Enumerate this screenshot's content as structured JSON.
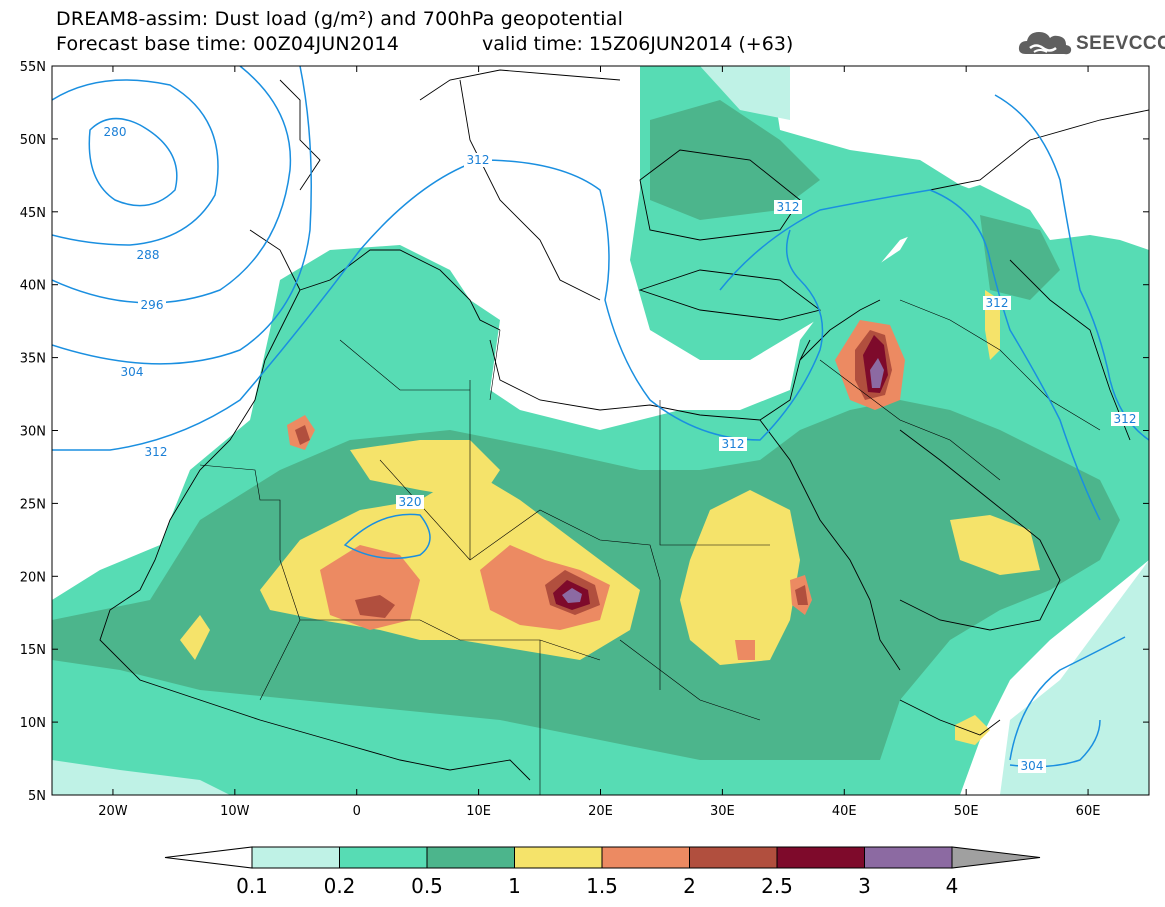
{
  "title_line1": "DREAM8-assim: Dust load (g/m²) and 700hPa geopotential",
  "title_line2": "Forecast base time: 00Z04JUN2014",
  "valid_time": "valid time: 15Z06JUN2014 (+63)",
  "logo_text": "SEEVCCC",
  "lat_labels": [
    "55N",
    "50N",
    "45N",
    "40N",
    "35N",
    "30N",
    "25N",
    "20N",
    "15N",
    "10N",
    "5N"
  ],
  "lon_labels": [
    "20W",
    "10W",
    "0",
    "10E",
    "20E",
    "30E",
    "40E",
    "50E",
    "60E"
  ],
  "contour_labels": [
    "280",
    "288",
    "296",
    "304",
    "312",
    "312",
    "320",
    "312",
    "312",
    "312",
    "312",
    "304"
  ],
  "colorbar": {
    "labels": [
      "0.1",
      "0.2",
      "0.5",
      "1",
      "1.5",
      "2",
      "2.5",
      "3",
      "4"
    ],
    "colors": [
      "#ffffff",
      "#bff2e6",
      "#57dcb4",
      "#4cb58c",
      "#f5e36a",
      "#ec8a62",
      "#b14f3e",
      "#7e0a2b",
      "#8c6aa2",
      "#a0a0a0"
    ]
  }
}
